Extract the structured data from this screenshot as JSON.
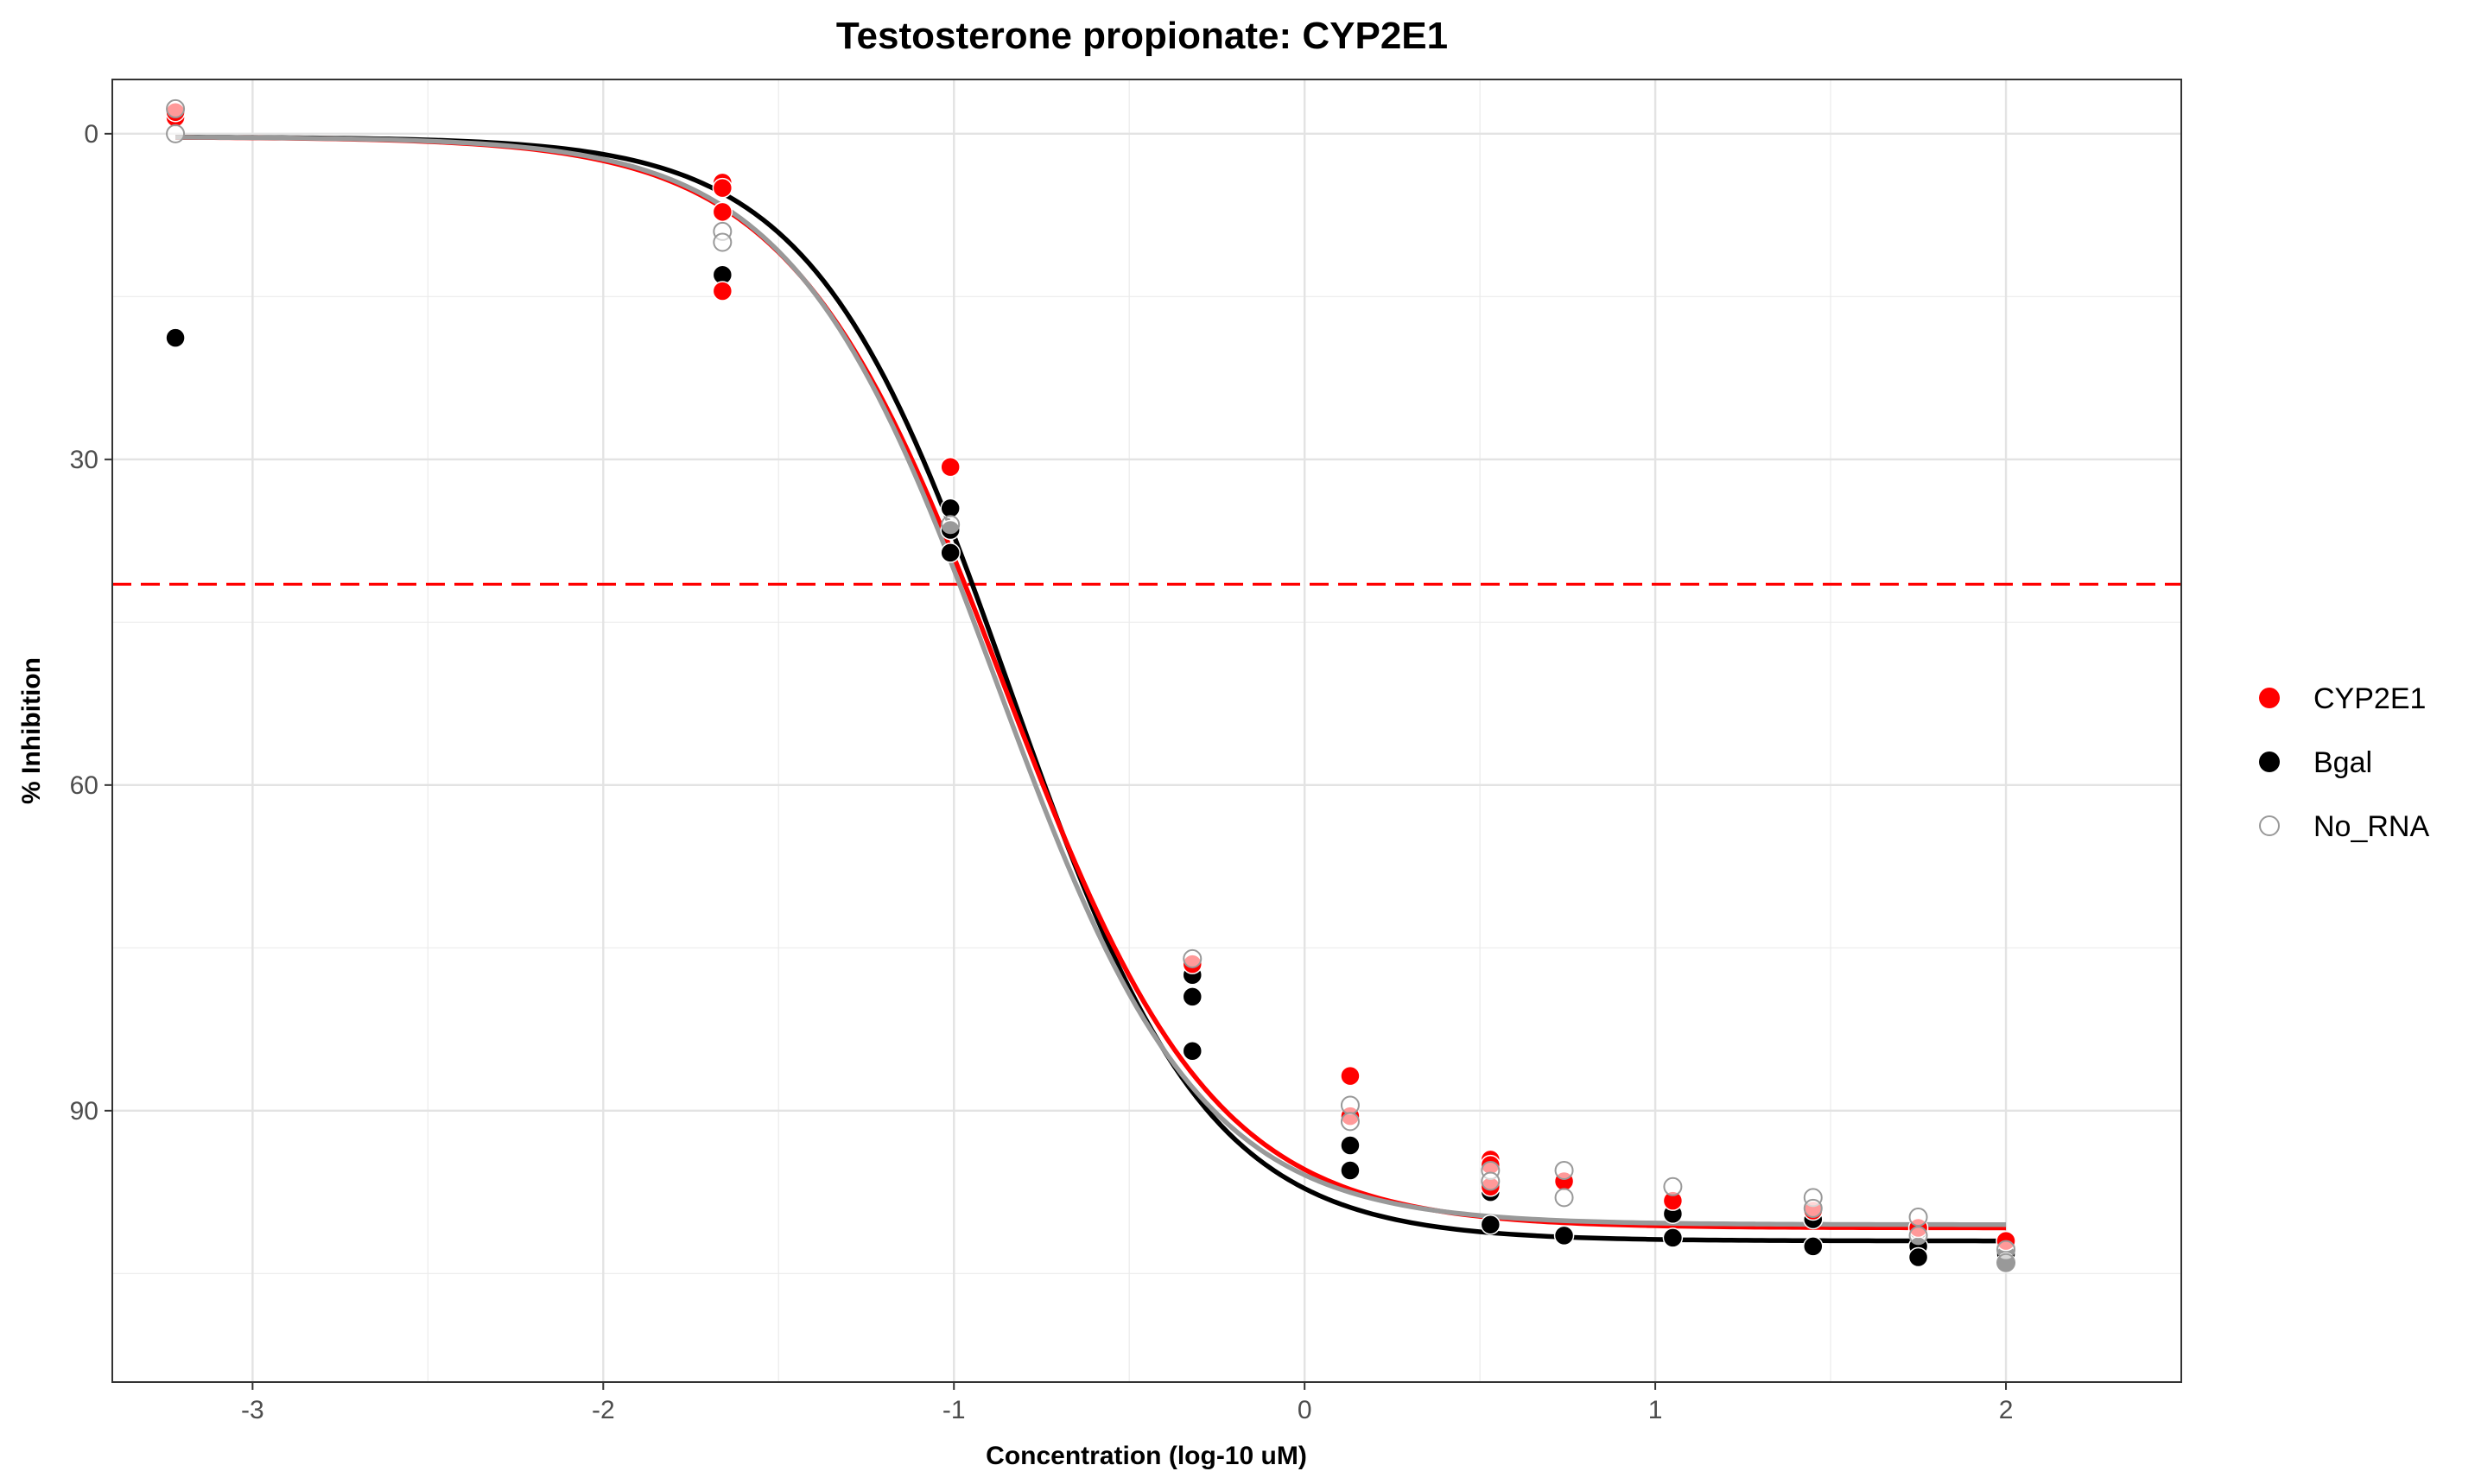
{
  "chart_data": {
    "type": "scatter",
    "title": "Testosterone propionate: CYP2E1",
    "xlabel": "Concentration (log-10 uM)",
    "ylabel": "% Inhibition",
    "xlim": [
      -3.4,
      2.5
    ],
    "ylim": [
      115,
      -5
    ],
    "y_reversed": true,
    "x_ticks": [
      -3,
      -2,
      -1,
      0,
      1,
      2
    ],
    "x_tick_labels": [
      "-3",
      "-2",
      "-1",
      "0",
      "1",
      "2"
    ],
    "y_ticks": [
      0,
      30,
      60,
      90
    ],
    "y_tick_labels": [
      "0",
      "30",
      "60",
      "90"
    ],
    "grid": true,
    "legend_position": "right",
    "reference_line": {
      "y": 41.5,
      "style": "dashed",
      "color": "#ff0000"
    },
    "series": [
      {
        "name": "CYP2E1",
        "color": "#ff0000",
        "marker": "filled",
        "points": [
          [
            -3.22,
            -1.5
          ],
          [
            -3.22,
            -2.0
          ],
          [
            -1.66,
            4.5
          ],
          [
            -1.66,
            5.0
          ],
          [
            -1.66,
            7.2
          ],
          [
            -1.66,
            14.5
          ],
          [
            -1.01,
            30.7
          ],
          [
            -0.32,
            76.5
          ],
          [
            0.13,
            86.8
          ],
          [
            0.13,
            90.5
          ],
          [
            0.53,
            94.5
          ],
          [
            0.53,
            95.0
          ],
          [
            0.53,
            97.0
          ],
          [
            0.74,
            96.5
          ],
          [
            1.05,
            98.3
          ],
          [
            1.45,
            99.2
          ],
          [
            1.75,
            100.8
          ],
          [
            2.0,
            102.0
          ]
        ],
        "curve": {
          "bottom": 0.3,
          "top": 100.8,
          "log_ic50": -0.86,
          "hill": 1.45
        }
      },
      {
        "name": "Bgal",
        "color": "#000000",
        "marker": "filled",
        "points": [
          [
            -3.22,
            18.8
          ],
          [
            -1.66,
            13.0
          ],
          [
            -1.01,
            34.5
          ],
          [
            -1.01,
            36.5
          ],
          [
            -1.01,
            38.6
          ],
          [
            -0.32,
            77.5
          ],
          [
            -0.32,
            79.5
          ],
          [
            -0.32,
            84.5
          ],
          [
            0.13,
            93.2
          ],
          [
            0.13,
            95.5
          ],
          [
            0.53,
            97.5
          ],
          [
            0.53,
            100.5
          ],
          [
            0.74,
            96.5
          ],
          [
            0.74,
            101.5
          ],
          [
            1.05,
            99.5
          ],
          [
            1.05,
            101.7
          ],
          [
            1.45,
            100.0
          ],
          [
            1.45,
            102.5
          ],
          [
            1.75,
            101.0
          ],
          [
            1.75,
            102.5
          ],
          [
            1.75,
            103.5
          ],
          [
            2.0,
            102.5
          ],
          [
            2.0,
            103.2
          ],
          [
            2.0,
            104.0
          ]
        ],
        "curve": {
          "bottom": 0.3,
          "top": 102.0,
          "log_ic50": -0.84,
          "hill": 1.55
        }
      },
      {
        "name": "No_RNA",
        "color": "#999999",
        "marker": "hollow",
        "points": [
          [
            -3.22,
            -2.3
          ],
          [
            -3.22,
            0.0
          ],
          [
            -1.66,
            9.0
          ],
          [
            -1.66,
            10.0
          ],
          [
            -1.01,
            36.0
          ],
          [
            -0.32,
            76.0
          ],
          [
            0.13,
            89.5
          ],
          [
            0.13,
            91.0
          ],
          [
            0.53,
            95.5
          ],
          [
            0.53,
            96.5
          ],
          [
            0.74,
            95.5
          ],
          [
            0.74,
            98.0
          ],
          [
            1.05,
            97.0
          ],
          [
            1.45,
            98.0
          ],
          [
            1.45,
            99.0
          ],
          [
            1.75,
            99.8
          ],
          [
            1.75,
            101.5
          ],
          [
            2.0,
            102.8
          ],
          [
            2.0,
            104.0
          ]
        ],
        "curve": {
          "bottom": 0.3,
          "top": 100.5,
          "log_ic50": -0.88,
          "hill": 1.5
        }
      }
    ]
  }
}
